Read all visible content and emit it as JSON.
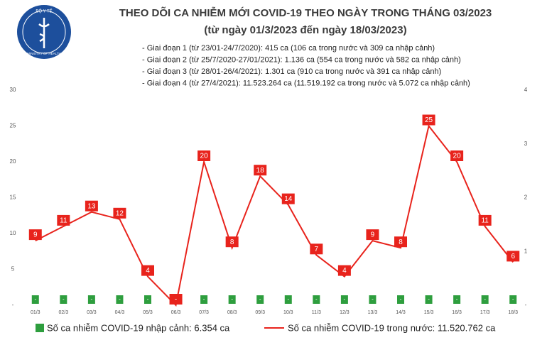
{
  "header": {
    "logo_top": "BỘ Y TẾ",
    "logo_bottom": "MINISTRY OF HEALTH",
    "bullets": [
      "- Giai đoạn 1 (từ 23/01-24/7/2020): 415 ca (106 ca trong nước và 309 ca nhập cảnh)",
      "- Giai đoạn 2 (từ 25/7/2020-27/01/2021): 1.136 ca (554 ca trong nước và 582 ca nhập cảnh)",
      "- Giai đoạn 3 (từ 28/01-26/4/2021): 1.301 ca (910 ca trong nước và 391 ca nhập cảnh)",
      "- Giai đoạn 4 (từ 27/4/2021): 11.523.264 ca (11.519.192 ca trong nước và 5.072 ca nhập cảnh)"
    ]
  },
  "chart_data": {
    "type": "line",
    "title": "THEO DÕI CA NHIỄM MỚI COVID-19 THEO NGÀY TRONG THÁNG 03/2023",
    "subtitle": "(từ ngày 01/3/2023 đến ngày 18/03/2023)",
    "categories": [
      "01/3",
      "02/3",
      "03/3",
      "04/3",
      "05/3",
      "06/3",
      "07/3",
      "08/3",
      "09/3",
      "10/3",
      "11/3",
      "12/3",
      "13/3",
      "14/3",
      "15/3",
      "16/3",
      "17/3",
      "18/3"
    ],
    "series": [
      {
        "name": "Số ca nhiễm COVID-19 nhập cảnh: 6.354 ca",
        "color": "#2e9e3e",
        "axis": "y2",
        "values": [
          0,
          0,
          0,
          0,
          0,
          0,
          0,
          0,
          0,
          0,
          0,
          0,
          0,
          0,
          0,
          0,
          0,
          0
        ],
        "value_labels": [
          "-",
          "-",
          "-",
          "-",
          "-",
          "-",
          "-",
          "-",
          "-",
          "-",
          "-",
          "-",
          "-",
          "-",
          "-",
          "-",
          "-",
          "-"
        ]
      },
      {
        "name": "Số ca nhiễm COVID-19 trong nước: 11.520.762 ca",
        "color": "#e8231c",
        "values": [
          9,
          11,
          13,
          12,
          4,
          0,
          20,
          8,
          18,
          14,
          7,
          4,
          9,
          8,
          25,
          20,
          11,
          6
        ],
        "value_labels": [
          "9",
          "11",
          "13",
          "12",
          "4",
          "-",
          "20",
          "8",
          "18",
          "14",
          "7",
          "4",
          "9",
          "8",
          "25",
          "20",
          "11",
          "6"
        ]
      }
    ],
    "ylim": [
      0,
      30
    ],
    "yticks": [
      {
        "value": 0,
        "label": "-"
      },
      5,
      10,
      15,
      20,
      25,
      30
    ],
    "y2lim": [
      0,
      4
    ],
    "y2ticks": [
      {
        "value": 0,
        "label": "-"
      },
      1,
      2,
      3,
      4
    ]
  }
}
